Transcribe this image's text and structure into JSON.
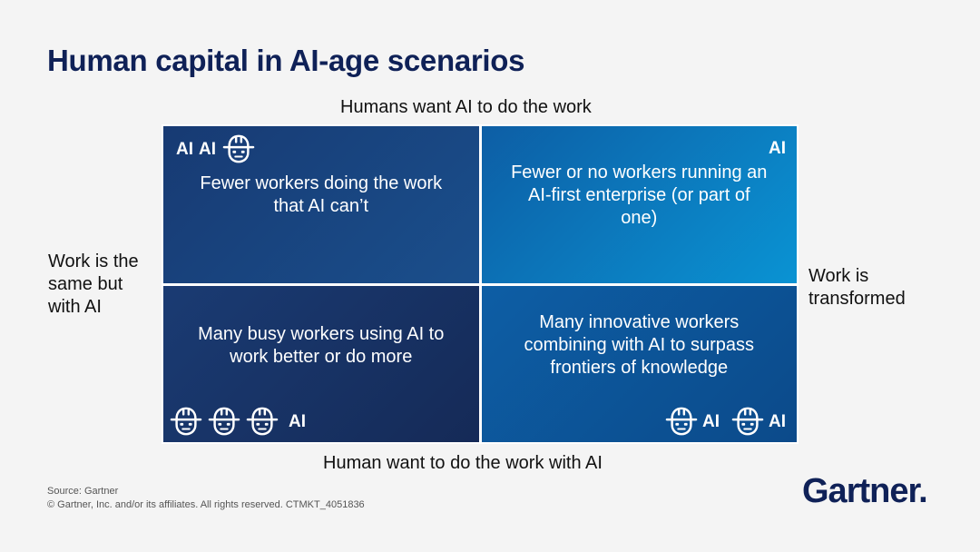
{
  "title": "Human capital in AI-age scenarios",
  "axes": {
    "top": "Humans want AI to do the work",
    "bottom": "Human want to do the work with AI",
    "left": "Work is the same but with AI",
    "right": "Work is transformed"
  },
  "quadrants": [
    {
      "text": "Fewer workers doing the work that AI can’t",
      "badge": [
        "AI",
        "AI"
      ],
      "workers": 1
    },
    {
      "text": "Fewer or no workers running an AI-first enterprise (or part of one)",
      "badge": [
        "AI"
      ],
      "workers": 0
    },
    {
      "text": "Many busy workers using AI to work better or do more",
      "badge": [
        "AI"
      ],
      "workers": 3
    },
    {
      "text": "Many innovative workers combining with AI to surpass frontiers of knowledge",
      "badge": [
        "AI",
        "AI"
      ],
      "workers": 2
    }
  ],
  "icons": {
    "worker": "worker-hardhat-icon"
  },
  "footer": {
    "source": "Source: Gartner",
    "copyright": "© Gartner, Inc. and/or its affiliates. All rights reserved. CTMKT_4051836"
  },
  "logo": "Gartner."
}
